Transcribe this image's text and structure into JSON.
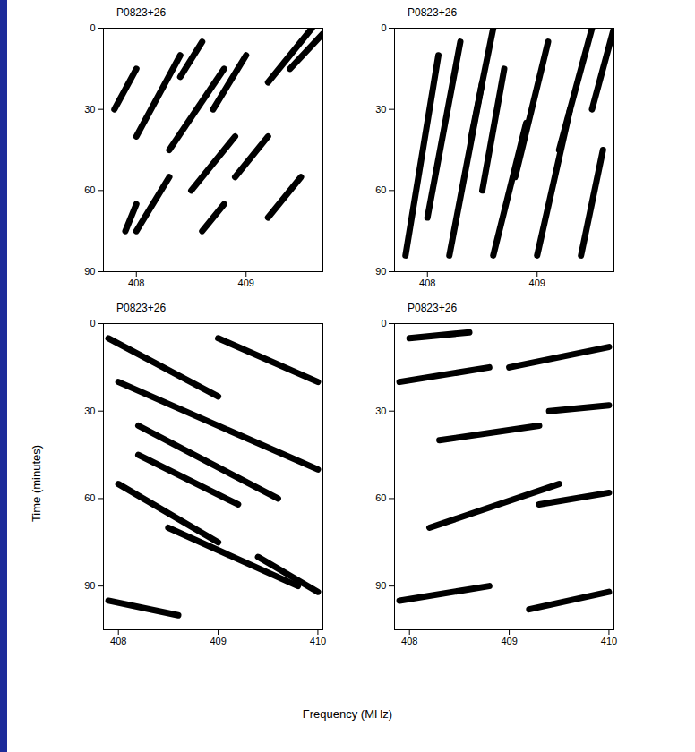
{
  "x_label": "Frequency (MHz)",
  "y_label": "Time (minutes)",
  "chart_data": [
    {
      "type": "dynamic_spectrum",
      "title": "P0823+26",
      "color": "#000000",
      "xlim": [
        407.7,
        409.7
      ],
      "xticks": [
        408,
        409
      ],
      "ylim": [
        0,
        90
      ],
      "yticks": [
        0,
        30,
        60,
        90
      ],
      "scintles": [
        [
          408.0,
          40,
          408.4,
          10
        ],
        [
          408.3,
          45,
          408.8,
          15
        ],
        [
          408.7,
          30,
          409.0,
          10
        ],
        [
          409.2,
          20,
          409.6,
          0
        ],
        [
          408.5,
          60,
          408.9,
          40
        ],
        [
          408.9,
          55,
          409.2,
          40
        ],
        [
          408.0,
          75,
          408.3,
          55
        ],
        [
          407.9,
          75,
          408.0,
          65
        ],
        [
          408.6,
          75,
          408.8,
          65
        ],
        [
          409.2,
          70,
          409.5,
          55
        ],
        [
          407.8,
          30,
          408.0,
          15
        ],
        [
          409.4,
          15,
          409.7,
          2
        ],
        [
          408.4,
          18,
          408.6,
          5
        ]
      ]
    },
    {
      "type": "dynamic_spectrum",
      "title": "P0823+26",
      "color": "#000000",
      "xlim": [
        407.7,
        409.7
      ],
      "xticks": [
        408,
        409
      ],
      "ylim": [
        0,
        90
      ],
      "yticks": [
        0,
        30,
        60,
        90
      ],
      "scintles": [
        [
          407.8,
          84,
          408.1,
          10
        ],
        [
          408.0,
          70,
          408.3,
          5
        ],
        [
          408.2,
          84,
          408.5,
          20
        ],
        [
          408.5,
          60,
          408.7,
          15
        ],
        [
          408.6,
          84,
          408.9,
          35
        ],
        [
          408.8,
          55,
          409.1,
          5
        ],
        [
          409.0,
          84,
          409.3,
          30
        ],
        [
          409.2,
          45,
          409.5,
          0
        ],
        [
          409.4,
          84,
          409.6,
          45
        ],
        [
          408.4,
          40,
          408.6,
          0
        ],
        [
          409.5,
          30,
          409.7,
          0
        ]
      ]
    },
    {
      "type": "dynamic_spectrum",
      "title": "P0823+26",
      "color": "#000000",
      "xlim": [
        407.85,
        410.05
      ],
      "xticks": [
        408,
        409,
        410
      ],
      "ylim": [
        0,
        105
      ],
      "yticks": [
        0,
        30,
        60,
        90
      ],
      "scintles": [
        [
          407.9,
          5,
          409.0,
          25
        ],
        [
          408.0,
          20,
          410.0,
          50
        ],
        [
          408.2,
          35,
          409.6,
          60
        ],
        [
          408.0,
          55,
          409.0,
          75
        ],
        [
          408.5,
          70,
          409.8,
          90
        ],
        [
          409.0,
          5,
          410.0,
          20
        ],
        [
          407.9,
          95,
          408.6,
          100
        ],
        [
          408.2,
          45,
          409.2,
          62
        ],
        [
          409.4,
          80,
          410.0,
          92
        ]
      ]
    },
    {
      "type": "dynamic_spectrum",
      "title": "P0823+26",
      "color": "#000000",
      "xlim": [
        407.85,
        410.05
      ],
      "xticks": [
        408,
        409,
        410
      ],
      "ylim": [
        0,
        105
      ],
      "yticks": [
        0,
        30,
        60,
        90
      ],
      "scintles": [
        [
          407.9,
          20,
          408.8,
          15
        ],
        [
          409.0,
          15,
          410.0,
          8
        ],
        [
          408.3,
          40,
          409.3,
          35
        ],
        [
          408.2,
          70,
          409.5,
          55
        ],
        [
          409.3,
          62,
          410.0,
          58
        ],
        [
          407.9,
          95,
          408.8,
          90
        ],
        [
          409.2,
          98,
          410.0,
          92
        ],
        [
          408.0,
          5,
          408.6,
          3
        ],
        [
          409.4,
          30,
          410.0,
          28
        ]
      ]
    }
  ]
}
